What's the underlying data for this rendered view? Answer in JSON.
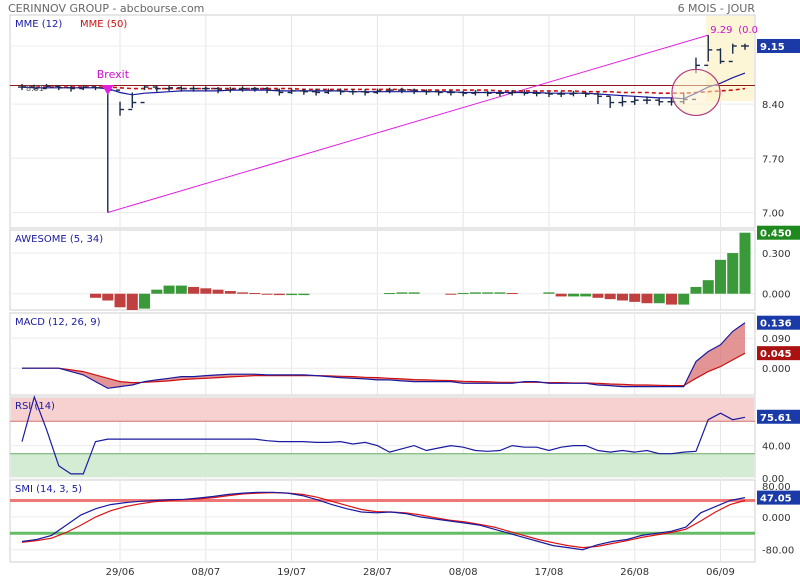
{
  "header": {
    "title": "CERINNOV GROUP - abcbourse.com",
    "period": "6 MOIS - JOUR"
  },
  "colors": {
    "price": "#1a2a4a",
    "mme12": "#1a1aa0",
    "mme50": "#cc1111",
    "trend": "#e020e0",
    "resistance": "#8b1a1a",
    "ao_up": "#3a9a3a",
    "ao_down": "#c04040",
    "rsi_high_zone": "#f7d0d0",
    "rsi_low_zone": "#d4ecd4",
    "smi_high_line": "#ee7777",
    "smi_low_line": "#66bb66",
    "label_box": "#1a3aa8",
    "macd_pos_box": "#aa1111"
  },
  "chart_data": [
    {
      "id": "price",
      "type": "ohlc",
      "legend": [
        {
          "name": "MME (12)",
          "color": "#1a1aa0"
        },
        {
          "name": "MME (50)",
          "color": "#cc1111"
        }
      ],
      "ylim": [
        6.8,
        9.55
      ],
      "yticks": [
        7.0,
        7.7,
        8.4,
        9.15
      ],
      "ytick_labels": [
        "7.00",
        "7.70",
        "8.40",
        "9.15"
      ],
      "last_value_label": "9.15",
      "x_labels": [
        "29/06",
        "08/07",
        "19/07",
        "28/07",
        "08/08",
        "17/08",
        "26/08",
        "06/09"
      ],
      "x_label_index": [
        8,
        15,
        22,
        29,
        36,
        43,
        50,
        57
      ],
      "annotations": {
        "brexit_label": "Brexit",
        "low_value": "8.61",
        "high_value": "9.29",
        "high_change": "(0.0"
      },
      "close": [
        8.62,
        8.6,
        8.63,
        8.61,
        8.6,
        8.62,
        8.61,
        8.58,
        8.33,
        8.42,
        8.62,
        8.6,
        8.61,
        8.6,
        8.6,
        8.6,
        8.58,
        8.59,
        8.6,
        8.6,
        8.58,
        8.55,
        8.57,
        8.56,
        8.55,
        8.57,
        8.56,
        8.56,
        8.55,
        8.57,
        8.58,
        8.58,
        8.57,
        8.56,
        8.55,
        8.55,
        8.54,
        8.55,
        8.54,
        8.54,
        8.55,
        8.54,
        8.54,
        8.53,
        8.53,
        8.54,
        8.53,
        8.5,
        8.42,
        8.43,
        8.45,
        8.45,
        8.43,
        8.43,
        8.46,
        8.9,
        9.1,
        8.95,
        9.15,
        9.15
      ],
      "high": [
        8.66,
        8.65,
        8.66,
        8.64,
        8.64,
        8.64,
        8.63,
        8.62,
        8.43,
        8.55,
        8.64,
        8.64,
        8.64,
        8.63,
        8.63,
        8.63,
        8.62,
        8.62,
        8.63,
        8.62,
        8.62,
        8.6,
        8.6,
        8.6,
        8.6,
        8.6,
        8.6,
        8.59,
        8.59,
        8.6,
        8.61,
        8.61,
        8.6,
        8.59,
        8.58,
        8.58,
        8.57,
        8.58,
        8.57,
        8.57,
        8.58,
        8.58,
        8.57,
        8.56,
        8.56,
        8.57,
        8.56,
        8.55,
        8.5,
        8.5,
        8.5,
        8.5,
        8.48,
        8.48,
        8.55,
        9.0,
        9.29,
        9.12,
        9.18,
        9.18
      ],
      "low": [
        8.58,
        8.58,
        8.6,
        8.58,
        8.56,
        8.58,
        8.58,
        7.0,
        8.25,
        8.35,
        8.58,
        8.56,
        8.57,
        8.56,
        8.56,
        8.56,
        8.54,
        8.55,
        8.56,
        8.56,
        8.54,
        8.51,
        8.53,
        8.52,
        8.51,
        8.53,
        8.52,
        8.52,
        8.51,
        8.53,
        8.54,
        8.54,
        8.53,
        8.52,
        8.51,
        8.51,
        8.5,
        8.51,
        8.5,
        8.5,
        8.51,
        8.51,
        8.5,
        8.49,
        8.49,
        8.5,
        8.49,
        8.4,
        8.35,
        8.37,
        8.39,
        8.4,
        8.38,
        8.38,
        8.4,
        8.8,
        8.95,
        8.92,
        9.05,
        9.1
      ],
      "mme12": [
        8.62,
        8.61,
        8.61,
        8.61,
        8.61,
        8.61,
        8.61,
        8.6,
        8.55,
        8.52,
        8.54,
        8.55,
        8.56,
        8.57,
        8.57,
        8.57,
        8.57,
        8.58,
        8.58,
        8.58,
        8.58,
        8.57,
        8.57,
        8.57,
        8.57,
        8.57,
        8.57,
        8.56,
        8.56,
        8.56,
        8.56,
        8.56,
        8.56,
        8.56,
        8.56,
        8.56,
        8.55,
        8.55,
        8.55,
        8.55,
        8.55,
        8.55,
        8.55,
        8.54,
        8.54,
        8.54,
        8.54,
        8.53,
        8.52,
        8.51,
        8.5,
        8.49,
        8.48,
        8.48,
        8.47,
        8.54,
        8.62,
        8.67,
        8.74,
        8.8
      ],
      "mme50": [
        8.62,
        8.62,
        8.62,
        8.62,
        8.62,
        8.62,
        8.62,
        8.62,
        8.61,
        8.6,
        8.6,
        8.6,
        8.6,
        8.6,
        8.6,
        8.6,
        8.6,
        8.6,
        8.6,
        8.6,
        8.6,
        8.6,
        8.6,
        8.59,
        8.59,
        8.59,
        8.59,
        8.59,
        8.59,
        8.59,
        8.59,
        8.59,
        8.58,
        8.58,
        8.58,
        8.58,
        8.58,
        8.58,
        8.58,
        8.57,
        8.57,
        8.57,
        8.57,
        8.57,
        8.57,
        8.57,
        8.56,
        8.56,
        8.56,
        8.55,
        8.55,
        8.55,
        8.54,
        8.54,
        8.54,
        8.55,
        8.56,
        8.57,
        8.58,
        8.6
      ]
    },
    {
      "id": "awesome",
      "type": "bar",
      "legend": [
        {
          "name": "AWESOME (5, 34)",
          "color": "#1a1aa0"
        }
      ],
      "ylim": [
        -0.12,
        0.47
      ],
      "yticks": [
        0.0,
        0.3
      ],
      "ytick_labels": [
        "0.000",
        "0.300"
      ],
      "last_value_label": "0.450",
      "values": [
        0,
        0,
        0,
        0,
        0,
        0,
        -0.03,
        -0.05,
        -0.1,
        -0.12,
        -0.11,
        0.03,
        0.06,
        0.06,
        0.05,
        0.04,
        0.03,
        0.02,
        0.01,
        0.005,
        -0.005,
        -0.01,
        -0.01,
        -0.01,
        0,
        0,
        0,
        0,
        0,
        0,
        0.005,
        0.01,
        0.01,
        0,
        0,
        -0.003,
        0.005,
        0.01,
        0.01,
        0.01,
        0.005,
        0,
        0,
        0.01,
        -0.02,
        -0.02,
        -0.02,
        -0.03,
        -0.04,
        -0.05,
        -0.06,
        -0.07,
        -0.07,
        -0.08,
        -0.08,
        0.05,
        0.1,
        0.25,
        0.3,
        0.45
      ]
    },
    {
      "id": "macd",
      "type": "line",
      "legend": [
        {
          "name": "MACD (12, 26, 9)",
          "color": "#1a1aa0"
        }
      ],
      "ylim": [
        -0.08,
        0.165
      ],
      "yticks": [
        0.0,
        0.09
      ],
      "ytick_labels": [
        "0.000",
        "0.090"
      ],
      "last_value_label": "0.136",
      "last_signal_label": "0.045",
      "series": [
        {
          "name": "MACD",
          "values": [
            0,
            0,
            0,
            0,
            -0.01,
            -0.02,
            -0.04,
            -0.06,
            -0.055,
            -0.05,
            -0.04,
            -0.035,
            -0.03,
            -0.025,
            -0.025,
            -0.022,
            -0.02,
            -0.018,
            -0.018,
            -0.018,
            -0.02,
            -0.02,
            -0.02,
            -0.02,
            -0.022,
            -0.025,
            -0.028,
            -0.03,
            -0.032,
            -0.035,
            -0.035,
            -0.038,
            -0.04,
            -0.04,
            -0.04,
            -0.04,
            -0.045,
            -0.045,
            -0.045,
            -0.045,
            -0.045,
            -0.04,
            -0.04,
            -0.045,
            -0.045,
            -0.045,
            -0.045,
            -0.05,
            -0.052,
            -0.055,
            -0.055,
            -0.055,
            -0.055,
            -0.055,
            -0.055,
            0.02,
            0.05,
            0.07,
            0.11,
            0.136
          ]
        },
        {
          "name": "Signal",
          "values": [
            0,
            0,
            0,
            0,
            -0.005,
            -0.01,
            -0.02,
            -0.03,
            -0.04,
            -0.043,
            -0.042,
            -0.04,
            -0.038,
            -0.034,
            -0.032,
            -0.03,
            -0.028,
            -0.026,
            -0.024,
            -0.022,
            -0.022,
            -0.022,
            -0.022,
            -0.022,
            -0.022,
            -0.023,
            -0.024,
            -0.025,
            -0.027,
            -0.028,
            -0.03,
            -0.032,
            -0.034,
            -0.035,
            -0.036,
            -0.037,
            -0.039,
            -0.04,
            -0.041,
            -0.042,
            -0.042,
            -0.042,
            -0.042,
            -0.043,
            -0.043,
            -0.044,
            -0.044,
            -0.045,
            -0.047,
            -0.048,
            -0.05,
            -0.05,
            -0.051,
            -0.052,
            -0.052,
            -0.03,
            -0.01,
            0.005,
            0.025,
            0.045
          ]
        }
      ]
    },
    {
      "id": "rsi",
      "type": "line",
      "legend": [
        {
          "name": "RSI (14)",
          "color": "#1a1aa0"
        }
      ],
      "ylim": [
        0,
        100
      ],
      "yticks": [
        40,
        0
      ],
      "ytick_labels": [
        "40.00",
        "0.00"
      ],
      "last_value_label": "75.61",
      "zones": {
        "high": 70,
        "low": 30
      },
      "values": [
        45,
        100,
        60,
        15,
        5,
        5,
        45,
        48,
        48,
        48,
        48,
        48,
        48,
        48,
        48,
        48,
        48,
        48,
        48,
        48,
        46,
        45,
        45,
        45,
        44,
        44,
        45,
        42,
        44,
        40,
        32,
        36,
        40,
        34,
        37,
        40,
        38,
        34,
        33,
        34,
        40,
        38,
        38,
        34,
        38,
        40,
        40,
        34,
        32,
        34,
        32,
        34,
        30,
        30,
        32,
        33,
        72,
        80,
        72,
        75
      ]
    },
    {
      "id": "smi",
      "type": "line",
      "legend": [
        {
          "name": "SMI (14, 3, 5)",
          "color": "#1a1aa0"
        }
      ],
      "ylim": [
        -110,
        90
      ],
      "yticks": [
        0,
        -80
      ],
      "ytick_labels": [
        "0.000",
        "-80.00"
      ],
      "last_value_label": "47.05",
      "levels": {
        "high": 40,
        "low": -40
      },
      "series": [
        {
          "name": "SMI",
          "values": [
            -60,
            -55,
            -45,
            -20,
            5,
            20,
            30,
            35,
            38,
            40,
            42,
            43,
            46,
            50,
            55,
            58,
            60,
            60,
            58,
            52,
            42,
            30,
            20,
            12,
            10,
            12,
            8,
            0,
            -5,
            -10,
            -15,
            -20,
            -30,
            -40,
            -50,
            -60,
            -70,
            -75,
            -80,
            -68,
            -60,
            -55,
            -45,
            -40,
            -35,
            -25,
            10,
            25,
            40,
            47
          ]
        },
        {
          "name": "Signal",
          "values": [
            -62,
            -58,
            -52,
            -38,
            -20,
            0,
            15,
            25,
            32,
            37,
            40,
            42,
            44,
            47,
            52,
            56,
            58,
            59,
            58,
            55,
            48,
            38,
            28,
            18,
            13,
            12,
            10,
            5,
            -2,
            -8,
            -12,
            -18,
            -25,
            -35,
            -45,
            -55,
            -63,
            -70,
            -75,
            -72,
            -65,
            -58,
            -50,
            -44,
            -38,
            -30,
            -10,
            12,
            30,
            40
          ]
        }
      ]
    }
  ]
}
